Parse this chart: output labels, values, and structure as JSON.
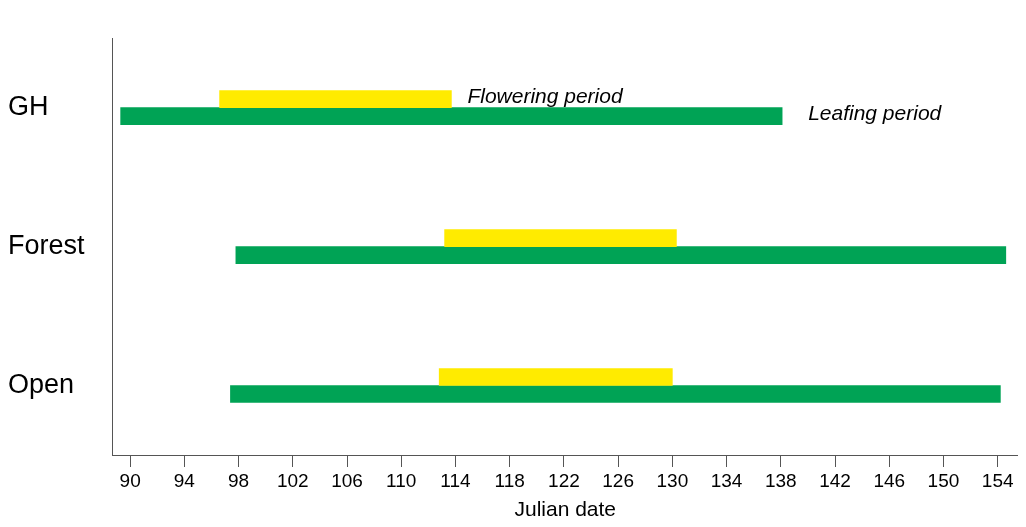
{
  "chart_data": {
    "type": "bar",
    "orientation": "horizontal",
    "xlabel": "Julian date",
    "categories": [
      "GH",
      "Forest",
      "Open"
    ],
    "series": [
      {
        "name": "Flowering period",
        "color": "#ffeb00",
        "base": [
          96.6,
          113.2,
          112.8
        ],
        "values": [
          17.1,
          17.1,
          17.2
        ]
      },
      {
        "name": "Leafing period",
        "color": "#00a355",
        "base": [
          89.3,
          97.8,
          97.4
        ],
        "values": [
          48.8,
          56.8,
          56.8
        ]
      }
    ],
    "xlim": [
      88.7,
      155.5
    ],
    "xticks": [
      90,
      94,
      98,
      102,
      106,
      110,
      114,
      118,
      122,
      126,
      130,
      134,
      138,
      142,
      146,
      150,
      154
    ],
    "grid": false,
    "legend": false
  }
}
